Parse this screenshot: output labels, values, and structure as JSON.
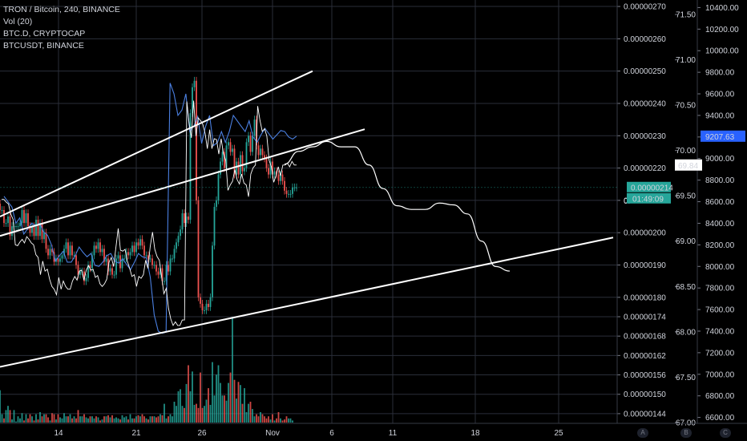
{
  "legend": {
    "main": "TRON / Bitcoin, 240, BINANCE",
    "vol": "Vol (20)",
    "btcd": "BTC.D, CRYPTOCAP",
    "btcusdt": "BTCUSDT, BINANCE"
  },
  "colors": {
    "background": "#000000",
    "grid": "#2a2e39",
    "up": "#26a69a",
    "down": "#ef5350",
    "btcd_line": "#ffffff",
    "btcusdt_line": "#4a7fe0",
    "trendline": "#ffffff",
    "price_badge": "#26a69a",
    "btcusdt_badge": "#2962ff"
  },
  "corner_buttons": [
    "A",
    "B",
    "C"
  ],
  "chart_data": {
    "type": "candlestick",
    "x_axis": {
      "tick_labels": [
        "14",
        "21",
        "26",
        "Nov",
        "6",
        "11",
        "18",
        "25"
      ]
    },
    "y_axis_price": {
      "range": [
        1.41e-06,
        2.72e-06
      ],
      "tick_labels": [
        "0.00000270",
        "0.00000260",
        "0.00000250",
        "0.00000240",
        "0.00000230",
        "0.00000220",
        "0.00000210",
        "0.00000200",
        "0.00000190",
        "0.00000180",
        "0.00000174",
        "0.00000168",
        "0.00000162",
        "0.00000156",
        "0.00000150",
        "0.00000144"
      ]
    },
    "y_axis_btcd": {
      "range": [
        66.99,
        71.66
      ],
      "tick_labels": [
        "71.50",
        "71.00",
        "70.50",
        "70.00",
        "69.50",
        "69.00",
        "68.50",
        "68.00",
        "67.50",
        "67.00"
      ]
    },
    "y_axis_btcusdt": {
      "range": [
        6545,
        10470
      ],
      "tick_labels": [
        "10400.00",
        "10200.00",
        "10000.00",
        "9800.00",
        "9600.00",
        "9400.00",
        "9200.00",
        "9000.00",
        "8800.00",
        "8600.00",
        "8400.00",
        "8200.00",
        "8000.00",
        "7800.00",
        "7600.00",
        "7400.00",
        "7200.00",
        "7000.00",
        "6800.00",
        "6600.00"
      ]
    },
    "current_labels": {
      "price": "0.00000214",
      "countdown": "01:49:09",
      "btcd": "69.84",
      "btcusdt": "9207.63",
      "partial_tick": "0."
    },
    "price_seed": [
      2.07,
      2.07,
      2.03,
      2.03,
      2.05,
      1.99,
      2.02,
      2.02,
      2.02,
      2.02,
      2.03,
      2.07,
      2.03,
      2.06,
      2.02,
      2.0,
      2.02,
      1.99,
      2.04,
      1.99,
      2.03,
      1.98,
      2.0,
      1.95,
      1.93,
      1.95,
      1.94,
      1.91,
      1.92,
      1.91,
      1.92,
      1.93,
      1.95,
      1.97,
      1.93,
      1.96,
      1.93,
      1.93,
      1.9,
      1.87,
      1.88,
      1.88,
      1.85,
      1.86,
      1.9,
      1.89,
      1.93,
      1.96,
      1.95,
      1.97,
      1.94,
      1.95,
      1.91,
      1.92,
      1.88,
      1.89,
      1.87,
      1.87,
      1.92,
      1.93,
      1.89,
      1.92,
      1.92,
      1.94,
      1.93,
      1.94,
      1.96,
      1.94,
      1.97,
      1.96,
      1.98,
      1.96,
      1.93,
      1.93,
      1.92,
      1.92,
      1.9,
      1.9,
      1.88,
      1.87,
      1.89,
      1.85,
      1.85,
      1.9,
      1.88,
      1.92,
      1.92,
      1.95,
      1.97,
      1.99,
      2.01,
      2.06,
      2.03,
      2.05,
      2.04,
      2.37,
      2.45,
      2.47,
      2.1,
      1.8,
      1.78,
      1.76,
      1.76,
      1.78,
      1.77,
      1.8,
      1.96,
      2.08,
      2.1,
      2.18,
      2.22,
      2.25,
      2.2,
      2.27,
      2.28,
      2.25,
      2.26,
      2.18,
      2.22,
      2.18,
      2.24,
      2.19,
      2.2,
      2.28,
      2.3,
      2.25,
      2.3,
      2.35,
      2.27,
      2.24,
      2.26,
      2.24,
      2.23,
      2.2,
      2.18,
      2.22,
      2.18,
      2.19,
      2.18,
      2.16,
      2.18,
      2.16,
      2.13,
      2.12,
      2.12,
      2.12,
      2.14,
      2.14,
      2.14
    ],
    "btcd_seed": [
      69.46,
      69.46,
      69.43,
      69.41,
      69.3,
      69.24,
      68.96,
      68.95,
      68.99,
      69.02,
      68.98,
      69.05,
      69.02,
      68.98,
      68.96,
      68.85,
      68.82,
      68.63,
      68.78,
      68.67,
      68.69,
      68.58,
      68.5,
      68.47,
      68.41,
      68.6,
      68.47,
      68.56,
      68.5,
      68.47,
      68.47,
      68.56,
      68.61,
      68.57,
      68.67,
      68.68,
      68.57,
      68.68,
      68.73,
      68.68,
      68.69,
      68.6,
      68.62,
      68.53,
      68.5,
      68.53,
      68.58,
      68.77,
      68.82,
      68.72,
      68.93,
      69.14,
      68.9,
      68.89,
      68.91,
      68.78,
      68.7,
      68.61,
      68.63,
      68.5,
      68.61,
      68.59,
      68.63,
      68.79,
      68.7,
      68.94,
      69.1,
      68.91,
      68.83,
      68.79,
      68.6,
      68.42,
      68.48,
      68.26,
      68.14,
      68.07,
      68.11,
      68.07,
      68.07,
      68.13,
      68.13,
      70.54,
      70.3,
      70.14,
      70.55,
      70.16,
      70.36,
      70.33,
      70.29,
      70.19,
      70.02,
      70.23,
      70.02,
      70.13,
      70.12,
      69.96,
      70.13,
      69.97,
      69.89,
      69.56,
      69.62,
      69.66,
      69.79,
      69.68,
      69.63,
      69.74,
      69.64,
      69.62,
      69.49,
      69.74,
      69.81,
      69.84,
      70.49,
      70.33,
      70.21,
      70.24,
      70.16,
      69.89,
      69.82,
      69.65,
      69.72,
      69.82,
      69.72,
      69.84,
      69.84,
      69.86,
      69.82,
      69.88,
      69.84,
      69.84
    ],
    "btcd_projection": [
      69.85,
      69.99,
      70.04,
      70.1,
      70.04,
      70.04,
      69.84,
      69.58,
      69.39,
      69.35,
      69.35,
      69.42,
      69.4,
      69.3,
      69.0,
      68.72,
      68.67
    ],
    "btcusdt_seed": [
      8650,
      8600,
      8550,
      8400,
      8450,
      8300,
      8350,
      8400,
      8380,
      8400,
      8320,
      8290,
      8200,
      8050,
      8100,
      8140,
      8040,
      8040,
      8100,
      8180,
      8130,
      8090,
      8120,
      8010,
      8000,
      8040,
      8100,
      8120,
      8050,
      8030,
      8070,
      8020,
      7970,
      8040,
      8120,
      8090,
      8080,
      7900,
      7550,
      7400,
      7380,
      7390,
      9700,
      9600,
      9400,
      9450,
      9600,
      9250,
      9300,
      9390,
      9140,
      9300,
      9400,
      9120,
      9150,
      9250,
      9150,
      9250,
      9400,
      9350,
      9300,
      9250,
      9350,
      9200,
      9150,
      9220,
      9280,
      9230,
      9180,
      9220,
      9260,
      9250,
      9200,
      9180,
      9207.63
    ],
    "volume_seed": [
      0.31,
      0.08,
      0.04,
      0.12,
      0.16,
      0.12,
      0.03,
      0.12,
      0.01,
      0.06,
      0.04,
      0.09,
      0.02,
      0.08,
      0.04,
      0.08,
      0.06,
      0.02,
      0.08,
      0.03,
      0.1,
      0.06,
      0.08,
      0.08,
      0.05,
      0.02,
      0.09,
      0.08,
      0.03,
      0.08,
      0.05,
      0.04,
      0.09,
      0.06,
      0.06,
      0.08,
      0.04,
      0.06,
      0.04,
      0.12,
      0.06,
      0.06,
      0.08,
      0.05,
      0.04,
      0.06,
      0.06,
      0.04,
      0.06,
      0.05,
      0.02,
      0.03,
      0.06,
      0.06,
      0.07,
      0.05,
      0.07,
      0.04,
      0.05,
      0.04,
      0.03,
      0.07,
      0.05,
      0.06,
      0.03,
      0.08,
      0.04,
      0.04,
      0.06,
      0.07,
      0.06,
      0.08,
      0.06,
      0.04,
      0.03,
      0.06,
      0.06,
      0.06,
      0.05,
      0.06,
      0.08,
      0.07,
      0.18,
      0.04,
      0.06,
      0.08,
      0.06,
      0.2,
      0.16,
      0.3,
      0.32,
      0.16,
      0.14,
      0.37,
      0.55,
      0.3,
      0.49,
      0.17,
      0.18,
      0.14,
      0.48,
      0.14,
      0.16,
      0.22,
      0.33,
      0.17,
      0.58,
      0.26,
      0.46,
      0.55,
      0.38,
      0.26,
      0.26,
      0.21,
      0.38,
      0.48,
      1.0,
      0.41,
      0.23,
      0.39,
      0.36,
      0.18,
      0.33,
      0.1,
      0.18,
      0.2,
      0.13,
      0.06,
      0.08,
      0.06,
      0.1,
      0.08,
      0.06,
      0.04,
      0.06,
      0.03,
      0.08,
      0.02,
      0.04,
      0.1,
      0.04,
      0.02,
      0.03,
      0.06,
      0.04,
      0.04,
      0.02
    ],
    "trendlines": [
      {
        "price": [
          2.05e-06,
          2.5e-06
        ],
        "from_candle": 0,
        "to_candle": 144
      },
      {
        "price": [
          1.99e-06,
          2.32e-06
        ],
        "from_candle": 0,
        "to_candle": 170
      },
      {
        "price": [
          1.585e-06,
          1.985e-06
        ],
        "from_candle": 0,
        "to_candle": 286
      }
    ]
  }
}
